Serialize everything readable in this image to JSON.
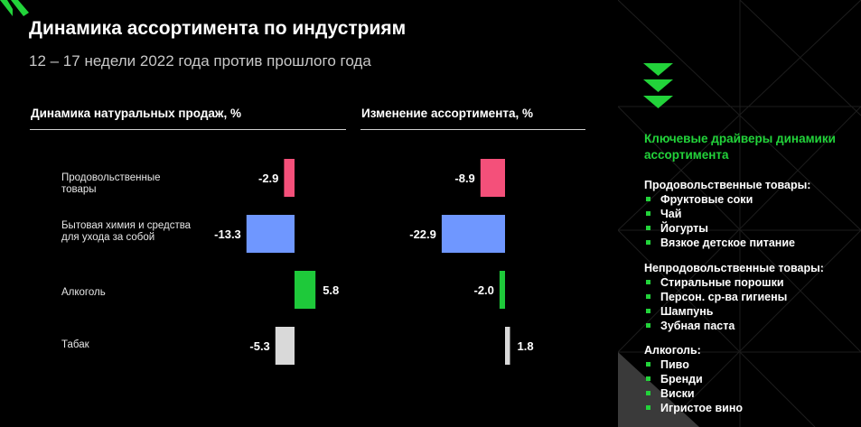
{
  "header": {
    "title": "Динамика ассортимента по индустриям",
    "subtitle": "12 – 17 недели 2022 года против прошлого года"
  },
  "chart_data": [
    {
      "type": "bar",
      "orientation": "horizontal",
      "title": "Динамика натуральных продаж, %",
      "categories": [
        "Продовольственные товары",
        "Бытовая химия и средства для ухода за собой",
        "Алкоголь",
        "Табак"
      ],
      "values": [
        -2.9,
        -13.3,
        5.8,
        -5.3
      ],
      "colors": [
        "#f4507a",
        "#6f97ff",
        "#1ec93a",
        "#d9d9d9"
      ]
    },
    {
      "type": "bar",
      "orientation": "horizontal",
      "title": "Изменение ассортимента, %",
      "categories": [
        "Продовольственные товары",
        "Бытовая химия и средства для ухода за собой",
        "Алкоголь",
        "Табак"
      ],
      "values": [
        -8.9,
        -22.9,
        -2.0,
        1.8
      ],
      "colors": [
        "#f4507a",
        "#6f97ff",
        "#1ec93a",
        "#d9d9d9"
      ]
    }
  ],
  "drivers": {
    "title": "Ключевые драйверы динамики ассортимента",
    "groups": [
      {
        "name": "Продовольственные товары:",
        "items": [
          "Фруктовые соки",
          "Чай",
          "Йогурты",
          "Вязкое детское питание"
        ]
      },
      {
        "name": "Непродовольственные товары:",
        "items": [
          "Стиральные порошки",
          "Персон. ср-ва гигиены",
          "Шампунь",
          "Зубная паста"
        ]
      },
      {
        "name": "Алкоголь:",
        "items": [
          "Пиво",
          "Бренди",
          "Виски",
          "Игристое вино"
        ]
      }
    ]
  },
  "colors": {
    "accent": "#22d33a",
    "food": "#f4507a",
    "household": "#6f97ff",
    "alcohol": "#1ec93a",
    "tobacco": "#d9d9d9"
  }
}
